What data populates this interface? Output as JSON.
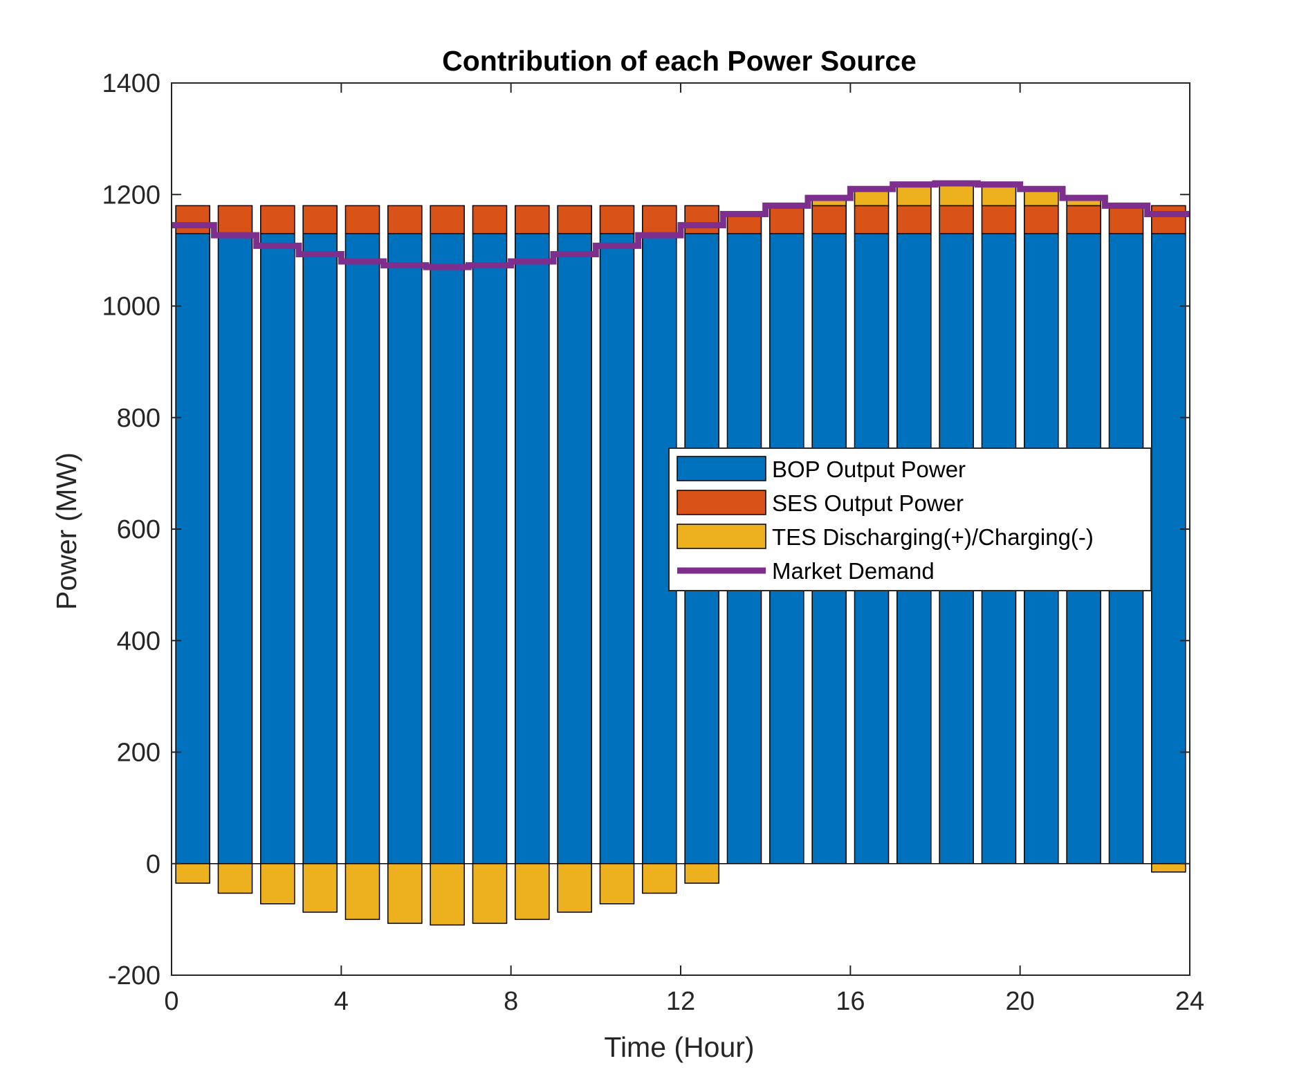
{
  "chart_data": {
    "type": "bar",
    "title": "Contribution of each Power Source",
    "xlabel": "Time (Hour)",
    "ylabel": "Power (MW)",
    "xlim": [
      0,
      24
    ],
    "ylim": [
      -200,
      1400
    ],
    "xticks": [
      "0",
      "4",
      "8",
      "12",
      "16",
      "20",
      "24"
    ],
    "yticks": [
      "-200",
      "0",
      "200",
      "400",
      "600",
      "800",
      "1000",
      "1200",
      "1400"
    ],
    "grid": false,
    "stacked": true,
    "legend_position": "center-right",
    "x": [
      0.5,
      1.5,
      2.5,
      3.5,
      4.5,
      5.5,
      6.5,
      7.5,
      8.5,
      9.5,
      10.5,
      11.5,
      12.5,
      13.5,
      14.5,
      15.5,
      16.5,
      17.5,
      18.5,
      19.5,
      20.5,
      21.5,
      22.5,
      23.5
    ],
    "series": [
      {
        "name": "BOP Output Power",
        "color": "#0072BD",
        "values": [
          1130,
          1130,
          1130,
          1130,
          1130,
          1130,
          1130,
          1130,
          1130,
          1130,
          1130,
          1130,
          1130,
          1130,
          1130,
          1130,
          1130,
          1130,
          1130,
          1130,
          1130,
          1130,
          1130,
          1130
        ]
      },
      {
        "name": "SES Output Power",
        "color": "#D95319",
        "values": [
          50,
          50,
          50,
          50,
          50,
          50,
          50,
          50,
          50,
          50,
          50,
          50,
          50,
          35,
          50,
          50,
          50,
          50,
          50,
          50,
          50,
          50,
          50,
          50
        ]
      },
      {
        "name": "TES Discharging(+)/Charging(-)",
        "color": "#EDB120",
        "values": [
          -35,
          -53,
          -72,
          -87,
          -100,
          -107,
          -110,
          -107,
          -100,
          -87,
          -72,
          -53,
          -35,
          0,
          0,
          14,
          30,
          38,
          40,
          38,
          30,
          14,
          0,
          -15
        ]
      },
      {
        "name": "Market Demand",
        "color": "#7E2F8E",
        "type": "stairs",
        "values": [
          1145,
          1127,
          1108,
          1093,
          1080,
          1073,
          1070,
          1073,
          1080,
          1093,
          1108,
          1127,
          1145,
          1165,
          1180,
          1194,
          1210,
          1218,
          1220,
          1218,
          1210,
          1194,
          1180,
          1165
        ]
      }
    ]
  }
}
